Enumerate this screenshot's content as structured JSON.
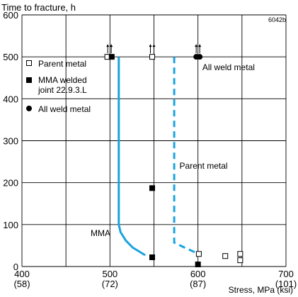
{
  "chart_data": {
    "type": "scatter",
    "figure_id": "6042b",
    "xlabel": "Stress, MPa (ksi)",
    "ylabel": "Time to fracture, h",
    "xlim": [
      400,
      700
    ],
    "ylim": [
      0,
      600
    ],
    "x_ticks": [
      {
        "value": 400,
        "label": "400",
        "sub": "(58)"
      },
      {
        "value": 500,
        "label": "500",
        "sub": "(72)"
      },
      {
        "value": 600,
        "label": "600",
        "sub": "(87)"
      },
      {
        "value": 700,
        "label": "700",
        "sub": "(101)"
      }
    ],
    "y_ticks": [
      0,
      100,
      200,
      300,
      400,
      500,
      600
    ],
    "grid": true,
    "legend_position": "top-left",
    "colors": {
      "curve": "#1aa3df",
      "axis": "#000000"
    },
    "series": [
      {
        "name": "Parent metal",
        "marker": "open-square",
        "points": [
          [
            497,
            500
          ],
          [
            548,
            500
          ],
          [
            601,
            30
          ],
          [
            631,
            25
          ],
          [
            648,
            30
          ],
          [
            648,
            15
          ]
        ],
        "runout_arrows_at": [
          497,
          548
        ]
      },
      {
        "name": "MMA welded joint 22.9.3.L",
        "marker": "filled-square",
        "points": [
          [
            502,
            500
          ],
          [
            548,
            187
          ],
          [
            548,
            22
          ],
          [
            600,
            5
          ]
        ],
        "runout_arrows_at": [
          502
        ]
      },
      {
        "name": "All weld metal",
        "marker": "filled-circle",
        "points": [
          [
            598,
            500
          ],
          [
            602,
            500
          ]
        ],
        "runout_arrows_at": [
          598,
          602
        ]
      }
    ],
    "curves": [
      {
        "label": "MMA",
        "style": "solid",
        "points": [
          [
            510,
            500
          ],
          [
            510,
            100
          ],
          [
            512,
            82
          ],
          [
            518,
            62
          ],
          [
            526,
            45
          ],
          [
            540,
            27
          ]
        ]
      },
      {
        "label": "Parent metal",
        "style": "dashed",
        "points": [
          [
            573,
            500
          ],
          [
            573,
            57
          ],
          [
            585,
            45
          ],
          [
            601,
            30
          ]
        ]
      }
    ],
    "annotations": [
      {
        "text": "All weld metal",
        "x": 605,
        "y": 468
      },
      {
        "text": "Parent metal",
        "x": 579,
        "y": 233
      },
      {
        "text": "MMA",
        "x": 478,
        "y": 73
      }
    ]
  }
}
